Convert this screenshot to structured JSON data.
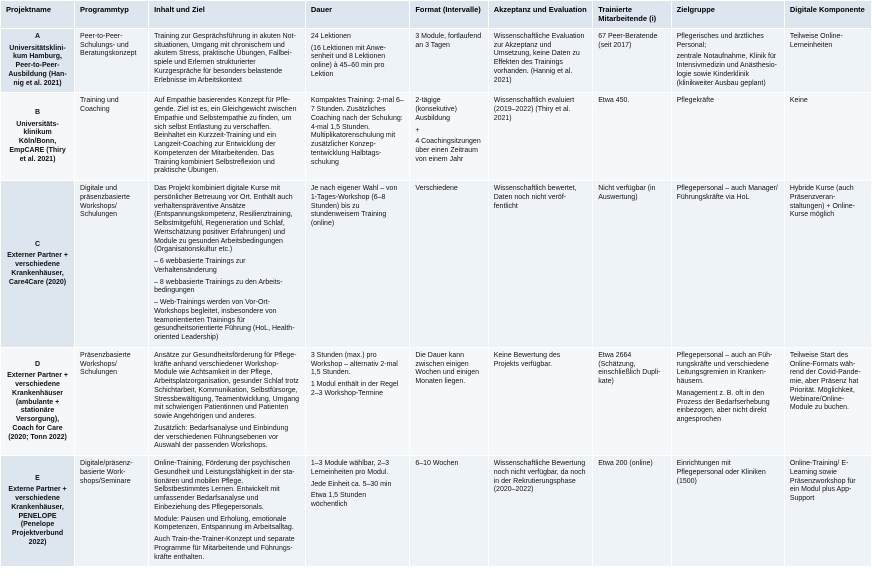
{
  "colors": {
    "header_bg": "#dde6ee",
    "row_bg_a": "#eef3f7",
    "row_bg_b": "#f5f8fa",
    "border": "#ffffff",
    "text": "#111111"
  },
  "columns": [
    "Projektname",
    "Programmtyp",
    "Inhalt und Ziel",
    "Dauer",
    "Format (Intervalle)",
    "Akzeptanz und Evaluation",
    "Trainierte Mitarbeitende (i)",
    "Zielgruppe",
    "Digitale Komponente"
  ],
  "rows": [
    {
      "name": "A\nUniversitätskli­ni­kum Hamburg, Peer-to-Peer-Ausbildung (Han­nig et al. 2021)",
      "typ": "Peer-to-Peer-Schulungs- und Beratungskonzept",
      "inhalt": "Training zur Gesprächsführung in akuten Not­situationen, Umgang mit chronischem und akutem Stress, praktische Übungen, Fallbei­spiele und Erlernen strukturierter Kurzgespräche für besonders belastende Erlebnisse im Arbeits­kontext",
      "dauer": "24 Lektionen\n(16 Lektionen mit Anwe­senheit und 8 Lektionen online) à 45–60 min pro Lektion",
      "format": "3 Module, fortlau­fend an 3 Tagen",
      "eval": "Wissenschaftliche Evalu­ation zur Akzeptanz und Umsetzung, keine Daten zu Effekten des Trainings vorhanden. (Hannig et al. 2021)",
      "trainiert": "67 Peer-Beratende (seit 2017)",
      "ziel": "Pflegerisches und ärztliches Personal;\nzentrale Notaufnahme, Klinik für Intensivmedizin und Anästhesio­logie sowie Kinderklinik (klinikweiter Ausbau geplant)",
      "digital": "Teilweise Online-Lerneinheiten"
    },
    {
      "name": "B\nUniversitäts­klinikum Köln/Bonn, EmpCARE (Thiry et al. 2021)",
      "typ": "Training und Coaching",
      "inhalt": "Auf Empathie basierendes Konzept für Pfle­gende. Ziel ist es, ein Gleichgewicht zwischen Empathie und Selbstempathie zu finden, um sich selbst Entlastung zu verschaffen. Beinhaltet ein Kurzzeit-Training und ein Langzeit-Coaching zur Entwicklung der Kompetenzen der Mitarbeiten­den. Das Training kombiniert Selbstreflexion und praktische Übungen.",
      "dauer": "Kompaktes Training: 2-mal 6–7 Stunden. Zusätzliches Coaching nach der Schulung: 4-mal 1,5 Stunden. Multiplikatorenschulung mit zusätzlicher Konzep­tentwicklung Halbtags­schulung",
      "format": "2-tägige (konsekutive) Ausbildung\n+\n4 Coachingsitzungen über einen Zeitraum von einem Jahr",
      "eval": "Wissenschaftlich evaluiert (2019–2022) (Thiry et al. 2021)",
      "trainiert": "Etwa 450.",
      "ziel": "Pflegekräfte",
      "digital": "Keine"
    },
    {
      "name": "C\nExterner Partner + verschiedene Krankenhäuser, Care4Care (2020)",
      "typ": "Digitale und präsenzbasierte Workshops/ Schulungen",
      "inhalt": "Das Projekt kombiniert digitale Kurse mit persön­licher Betreuung vor Ort. Enthält auch verhalten­spräventive Ansätze (Entspannungskompetenz, Resilienztraining, Selbstmitgefühl, Regeneration und Schlaf, Wertschätzung positiver Erfahrun­gen) und Module zu gesunden Arbeitsbedingun­gen (Organisationskultur etc.)\n– 6 webbasierte Trainings zur Verhaltensänderung\n– 8 webbasierte Trainings zu den Arbeits­bedingungen\n– Web-Trainings werden von Vor-Ort-Workshops begleitet, insbesondere von teamorientierten Trainings für gesundheitsorientierte Führung (HoL, Health-oriented Leadership)",
      "dauer": "Je nach eigener Wahl – von 1-Tages-Workshop (6–8 Stunden) bis zu stundenweisem Training (online)",
      "format": "Verschiedene",
      "eval": "Wissenschaftlich bewertet, Daten noch nicht veröf­fentlicht",
      "trainiert": "Nicht verfügbar (in Auswertung)",
      "ziel": "Pflegepersonal – auch Manager/ Führungskräfte via HoL",
      "digital": "Hybride Kurse (auch Präsenzveran­staltungen) + Online-Kurse möglich"
    },
    {
      "name": "D\nExterner Partner + verschiedene Krankenhäuser (ambulante + stationäre Versorgung), Coach for Care (2020; Tonn 2022)",
      "typ": "Präsenzbasierte Workshops/ Schulungen",
      "inhalt": "Ansätze zur Gesundheitsförderung für Pflege­kräfte anhand verschiedener Workshop-Module wie Achtsamkeit in der Pflege, Arbeitsplatz­organisation, gesunder Schlaf trotz Schicht­arbeit, Kommunikation, Selbstfürsorge, Stress­bewältigung, Teamentwicklung, Umgang mit schwierigen Patientinnen und Patienten sowie Angehörigen und anderes.\nZusätzlich: Bedarfsanalyse und Einbindung der verschiedenen Führungsebenen vor Auswahl der passenden Workshops.",
      "dauer": "3 Stunden (max.) pro Workshop – alternativ 2-mal 1,5 Stunden.\n\n1 Modul enthält in der Regel 2–3 Workshop-Termine",
      "format": "Die Dauer kann zwischen einigen Wochen und einigen Monaten liegen.",
      "eval": "Keine Bewertung des Projekts verfügbar.",
      "trainiert": "Etwa 2664 (Schätzung, einschließlich Dupli­kate)",
      "ziel": "Pflegepersonal – auch an Füh­rungskräfte und verschiedene Leitungsgremien in Kranken­häusern.\nManagement z. B. oft in den Prozess der Bedarfserhebung einbezogen, aber nicht direkt angesprochen",
      "digital": "Teilweise Start des Online-Formats wäh­rend der Covid-Pande­mie, aber Präsenz hat Priorität. Möglichkeit, Webinare/Online-Module zu buchen."
    },
    {
      "name": "E\nExterne Partner + verschiedene Krankenhäuser, PENELOPE (Penelope Projektverbund 2022)",
      "typ": "Digitale/präsenz­basierte Work­shops/Seminare",
      "inhalt": "Online-Training, Förderung der psychischen Gesundheit und Leistungsfähigkeit in der sta­tionären und mobilen Pflege. Selbstbestimmtes Lernen. Entwickelt mit umfassender Bedarfsana­lyse und Einbeziehung des Pflegepersonals.\nModule: Pausen und Erholung, emotionale Kom­petenzen, Entspannung im Arbeitsalltag.\nAuch Train-the-Trainer-Konzept und separate Programme für Mitarbeitende und Führungs­kräfte enthalten.",
      "dauer": "1–3 Module wählbar, 2–3 Lerneinheiten pro Modul.\n\nJede Einheit ca. 5–30 min\n\nEtwa 1,5 Stunden wöchentlich",
      "format": "6–10 Wochen",
      "eval": "Wissenschaftliche Bewer­tung noch nicht verfügbar, da noch in der Rekrutie­rungsphase (2020–2022)",
      "trainiert": "Etwa 200 (online)",
      "ziel": "Einrichtungen mit Pflegepersonal oder Kliniken (1500)",
      "digital": "Online-Training/ E-Learning sowie Präsenzworkshop für ein Modul plus App-Support"
    }
  ]
}
